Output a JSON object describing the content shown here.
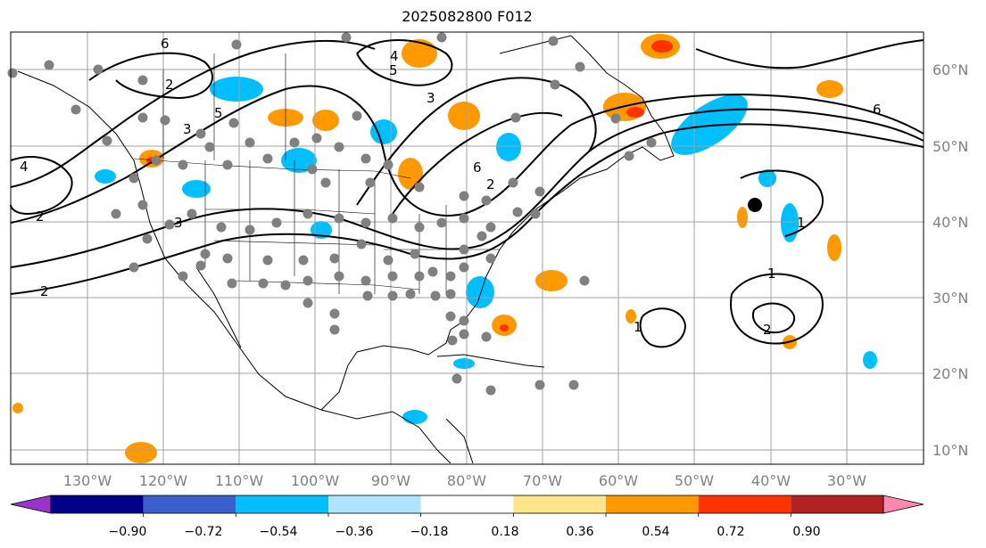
{
  "title": "2025082800 F012",
  "map": {
    "lat_labels": [
      "60°N",
      "50°N",
      "40°N",
      "30°N",
      "20°N",
      "10°N"
    ],
    "lon_labels": [
      "130°W",
      "120°W",
      "110°W",
      "100°W",
      "90°W",
      "80°W",
      "70°W",
      "60°W",
      "50°W",
      "40°W",
      "30°W"
    ],
    "contour_labels": [
      "1",
      "2",
      "3",
      "4",
      "5",
      "6"
    ],
    "station_color": "#808080",
    "contour_color": "#000000",
    "marker_color": "#000000"
  },
  "colorbar": {
    "ticks": [
      "−0.90",
      "−0.72",
      "−0.54",
      "−0.36",
      "−0.18",
      "0.18",
      "0.36",
      "0.54",
      "0.72",
      "0.90"
    ],
    "colors": [
      "#9933cc",
      "#00008b",
      "#3a5fcd",
      "#00bfff",
      "#aee4ff",
      "#ffffff",
      "#fde68a",
      "#ff9900",
      "#ff3300",
      "#b22222",
      "#ff88b0"
    ]
  }
}
